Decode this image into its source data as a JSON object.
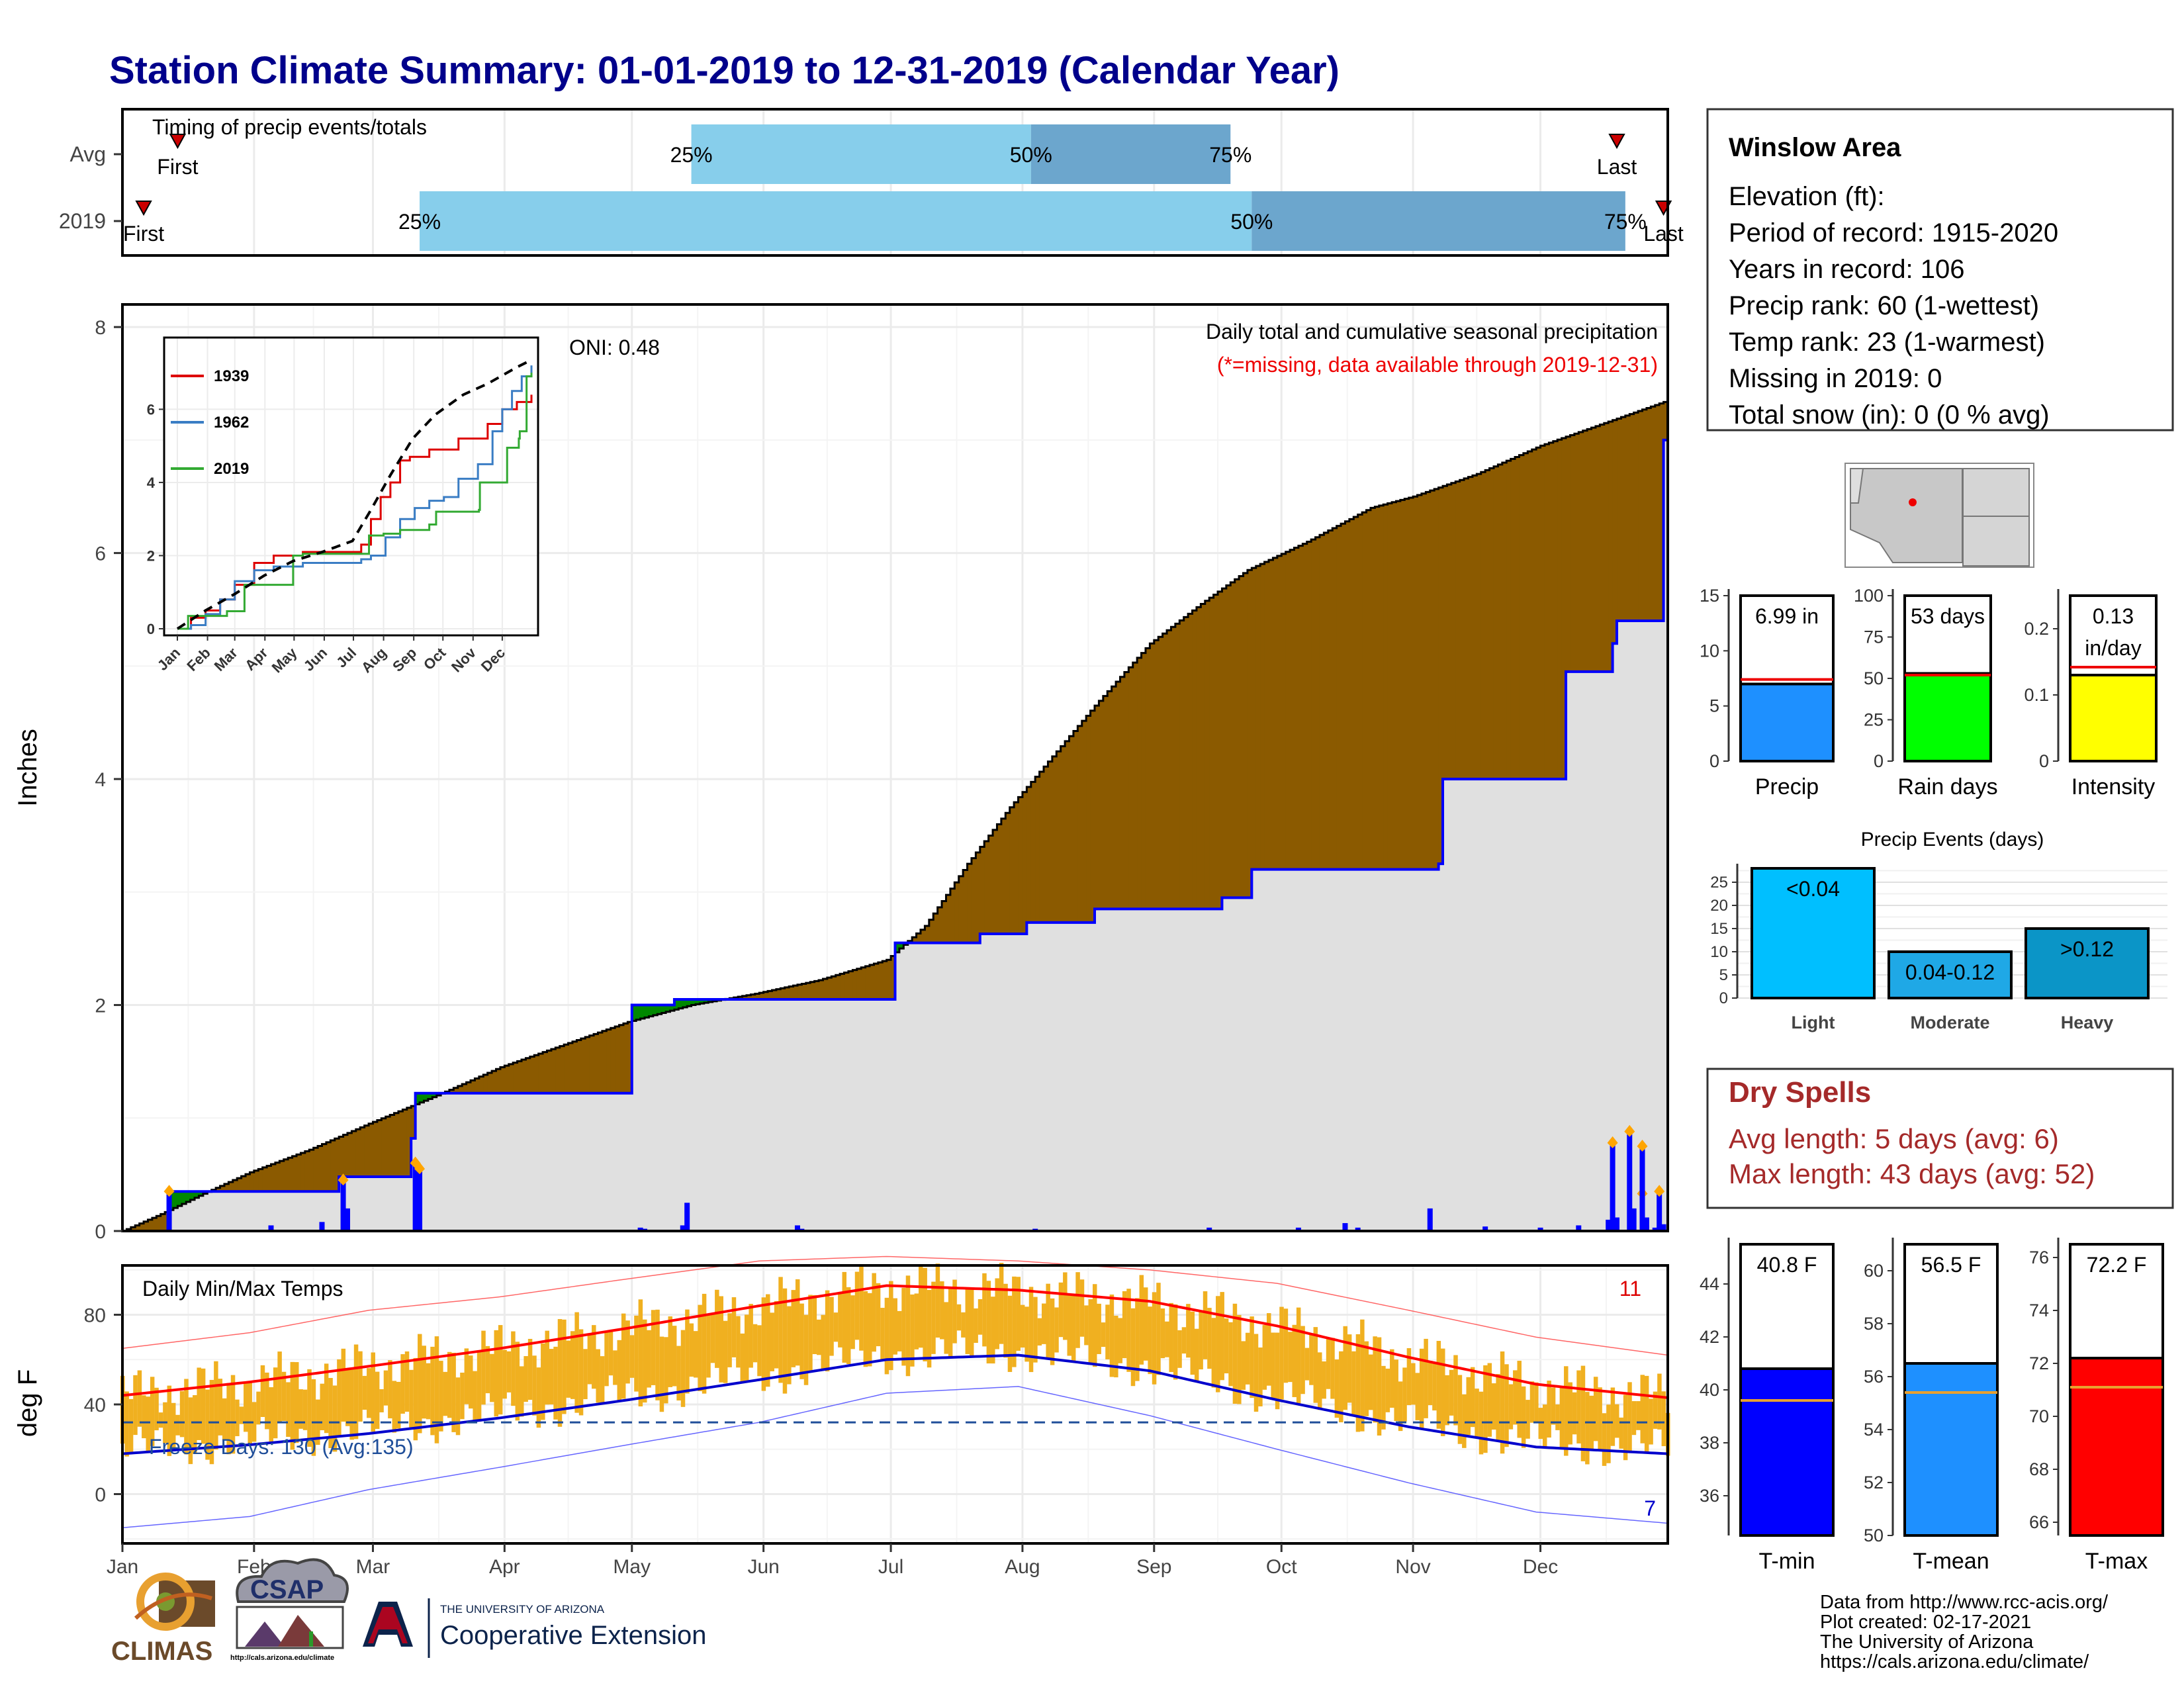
{
  "title": "Station Climate Summary: 01-01-2019 to 12-31-2019 (Calendar Year)",
  "chart_data": [
    {
      "type": "bar",
      "id": "timing",
      "label": "Timing of precip events/totals",
      "categories": [
        "Avg",
        "2019"
      ],
      "avg": {
        "first": "Jan 14",
        "p25": "May 15",
        "p50": "Aug 3",
        "p75": "Sep 19",
        "last": "Dec 19"
      },
      "y2019": {
        "first": "Jan 6",
        "p25": "Mar 12",
        "p50": "Sep 24",
        "p75": "Dec 21",
        "last": "Dec 30"
      },
      "marker_labels": {
        "first": "First",
        "last": "Last",
        "p25": "25%",
        "p50": "50%",
        "p75": "75%"
      },
      "colors": {
        "p25_p50": "#87ceeb",
        "p50_p75": "#6ca6cd",
        "marker": "#cc0000"
      }
    },
    {
      "type": "area",
      "id": "precip",
      "title": "Daily total and cumulative seasonal precipitation",
      "subtitle": "(*=missing, data available through 2019-12-31)",
      "annotation": "ONI: 0.48",
      "ylabel": "Inches",
      "ylim": [
        0,
        8.2
      ],
      "yticks": [
        0,
        2,
        4,
        6,
        8
      ],
      "x_months": [
        "Jan",
        "Feb",
        "Mar",
        "Apr",
        "May",
        "Jun",
        "Jul",
        "Aug",
        "Sep",
        "Oct",
        "Nov",
        "Dec"
      ],
      "normal_cumulative": {
        "x_day": [
          1,
          10,
          20,
          31,
          45,
          59,
          75,
          90,
          105,
          120,
          135,
          150,
          165,
          181,
          190,
          200,
          210,
          220,
          230,
          243,
          255,
          266,
          280,
          295,
          305,
          320,
          335,
          350,
          365
        ],
        "y": [
          0,
          0.15,
          0.33,
          0.52,
          0.72,
          0.95,
          1.2,
          1.45,
          1.65,
          1.85,
          2.0,
          2.1,
          2.22,
          2.4,
          2.7,
          3.25,
          3.75,
          4.2,
          4.65,
          5.2,
          5.55,
          5.85,
          6.1,
          6.4,
          6.5,
          6.7,
          6.95,
          7.15,
          7.35
        ]
      },
      "observed_cumulative": {
        "x_day": [
          1,
          11,
          12,
          35,
          52,
          53,
          69,
          70,
          120,
          121,
          130,
          131,
          182,
          183,
          198,
          203,
          213,
          214,
          229,
          230,
          260,
          267,
          268,
          311,
          312,
          340,
          341,
          352,
          353,
          375,
          385,
          364,
          365
        ],
        "y": [
          0,
          0.0,
          0.35,
          0.35,
          0.48,
          0.48,
          0.82,
          1.22,
          1.22,
          2.0,
          2.0,
          2.05,
          2.05,
          2.55,
          2.55,
          2.63,
          2.63,
          2.73,
          2.73,
          2.85,
          2.95,
          3.2,
          3.2,
          3.25,
          4.0,
          4.0,
          4.95,
          5.2,
          5.4,
          5.95,
          6.5,
          7.0,
          7.05
        ]
      },
      "daily_bars": {
        "x_day": [
          12,
          36,
          48,
          53,
          54,
          70,
          71,
          123,
          124,
          133,
          134,
          160,
          161,
          216,
          257,
          278,
          289,
          292,
          309,
          322,
          335,
          344,
          351,
          352,
          353,
          376,
          377,
          379,
          380,
          359,
          360,
          362,
          363,
          364
        ],
        "y": [
          0.35,
          0.05,
          0.08,
          0.45,
          0.2,
          0.6,
          0.55,
          0.03,
          0.02,
          0.05,
          0.25,
          0.05,
          0.02,
          0.02,
          0.03,
          0.03,
          0.07,
          0.03,
          0.2,
          0.04,
          0.03,
          0.05,
          0.1,
          0.78,
          0.12,
          0.88,
          0.2,
          0.33,
          0.05,
          0.75,
          0.12,
          0.03,
          0.35,
          0.06
        ]
      },
      "colors": {
        "normal": "#e0e0e0",
        "above": "#008800",
        "below": "#8b5a00",
        "observed": "#0000ff",
        "bars": "#0000ff",
        "bar_tops": "#ffa500"
      }
    },
    {
      "type": "line",
      "id": "inset",
      "xticks": [
        "Jan",
        "Feb",
        "Mar",
        "Apr",
        "May",
        "Jun",
        "Jul",
        "Aug",
        "Sep",
        "Oct",
        "Nov",
        "Dec"
      ],
      "yticks": [
        0,
        2,
        4,
        6
      ],
      "ylim": [
        0,
        7.6
      ],
      "series": [
        {
          "name": "1939",
          "color": "#dd0000",
          "x": [
            1,
            15,
            30,
            45,
            60,
            80,
            100,
            130,
            160,
            190,
            200,
            210,
            220,
            230,
            240,
            260,
            275,
            290,
            300,
            320,
            335,
            350,
            365
          ],
          "y": [
            0,
            0.3,
            0.5,
            0.8,
            1.2,
            1.8,
            2.0,
            2.1,
            2.1,
            2.3,
            3.0,
            3.6,
            4.0,
            4.6,
            4.7,
            4.9,
            4.9,
            5.2,
            5.2,
            5.6,
            6.0,
            6.2,
            6.4
          ]
        },
        {
          "name": "1962",
          "color": "#3a7dc4",
          "x": [
            1,
            15,
            30,
            45,
            60,
            80,
            100,
            130,
            160,
            190,
            200,
            215,
            230,
            245,
            260,
            275,
            290,
            310,
            325,
            335,
            345,
            355,
            365
          ],
          "y": [
            0,
            0.1,
            0.4,
            0.8,
            1.3,
            1.6,
            1.7,
            1.8,
            1.8,
            1.9,
            2.0,
            2.5,
            3.0,
            3.3,
            3.5,
            3.6,
            4.1,
            4.5,
            5.4,
            6.0,
            6.5,
            6.9,
            7.2
          ]
        },
        {
          "name": "2019",
          "color": "#33aa33",
          "x": [
            1,
            12,
            35,
            52,
            70,
            120,
            130,
            182,
            198,
            213,
            230,
            260,
            267,
            311,
            312,
            340,
            352,
            353,
            360,
            365
          ],
          "y": [
            0,
            0.35,
            0.35,
            0.48,
            1.2,
            2.0,
            2.05,
            2.05,
            2.55,
            2.6,
            2.7,
            2.85,
            3.2,
            3.25,
            4.0,
            4.95,
            5.2,
            5.4,
            6.9,
            7.0
          ]
        },
        {
          "name": "",
          "color": "#000000",
          "x": [
            1,
            30,
            60,
            90,
            120,
            150,
            181,
            200,
            220,
            243,
            266,
            295,
            320,
            350,
            365
          ],
          "y": [
            0,
            0.5,
            0.95,
            1.45,
            1.85,
            2.1,
            2.4,
            3.25,
            4.2,
            5.2,
            5.85,
            6.4,
            6.7,
            7.15,
            7.35
          ],
          "dash": true
        }
      ]
    },
    {
      "type": "line",
      "id": "temps",
      "label": "Daily Min/Max Temps",
      "ylabel": "deg F",
      "ylim": [
        -22,
        102
      ],
      "yticks": [
        0,
        40,
        80
      ],
      "x_months": [
        "Jan",
        "Feb",
        "Mar",
        "Apr",
        "May",
        "Jun",
        "Jul",
        "Aug",
        "Sep",
        "Oct",
        "Nov",
        "Dec"
      ],
      "freeze_label": "Freeze Days: 130 (Avg:135)",
      "freeze_line": 32,
      "count_hot": "11",
      "count_cold": "7",
      "normal_max": {
        "x_day": [
          1,
          31,
          59,
          90,
          120,
          151,
          181,
          212,
          243,
          273,
          304,
          334,
          365
        ],
        "y": [
          44,
          50,
          57,
          65,
          74,
          84,
          93,
          91,
          86,
          75,
          61,
          49,
          43
        ]
      },
      "normal_min": {
        "x_day": [
          1,
          31,
          59,
          90,
          120,
          151,
          181,
          212,
          243,
          273,
          304,
          334,
          365
        ],
        "y": [
          18,
          22,
          27,
          34,
          42,
          51,
          60,
          62,
          55,
          42,
          30,
          21,
          18
        ]
      },
      "record_max": {
        "x_day": [
          1,
          31,
          59,
          90,
          120,
          151,
          181,
          212,
          243,
          273,
          304,
          334,
          365
        ],
        "y": [
          65,
          72,
          82,
          88,
          96,
          104,
          106,
          104,
          100,
          94,
          82,
          70,
          62
        ]
      },
      "record_min": {
        "x_day": [
          1,
          31,
          59,
          90,
          120,
          151,
          181,
          212,
          243,
          273,
          304,
          334,
          365
        ],
        "y": [
          -15,
          -10,
          2,
          12,
          22,
          32,
          45,
          48,
          35,
          20,
          5,
          -8,
          -13
        ]
      },
      "colors": {
        "range": "#f0b020",
        "nmax": "#ff0000",
        "nmin": "#0000cc",
        "rmax": "#ff6666",
        "rmin": "#6666ff"
      }
    },
    {
      "type": "bar",
      "id": "precip_mini",
      "categories": [
        "Precip"
      ],
      "values": [
        6.99
      ],
      "normal": 7.4,
      "ylim": [
        0,
        15
      ],
      "yticks": [
        0,
        5,
        10,
        15
      ],
      "value_label": "6.99 in",
      "color": "#1e90ff"
    },
    {
      "type": "bar",
      "id": "raindays_mini",
      "categories": [
        "Rain days"
      ],
      "values": [
        53
      ],
      "normal": 52,
      "ylim": [
        0,
        100
      ],
      "yticks": [
        0,
        25,
        50,
        75,
        100
      ],
      "value_label": "53 days",
      "color": "#00ff00"
    },
    {
      "type": "bar",
      "id": "intensity_mini",
      "categories": [
        "Intensity"
      ],
      "values": [
        0.13
      ],
      "normal": 0.142,
      "ylim": [
        0,
        0.25
      ],
      "yticks": [
        0.0,
        0.1,
        0.2
      ],
      "value_label": "0.13",
      "value_unit": "in/day",
      "color": "#ffff00"
    },
    {
      "type": "bar",
      "id": "events",
      "title": "Precip Events (days)",
      "categories": [
        "Light",
        "Moderate",
        "Heavy"
      ],
      "values": [
        28,
        10,
        15
      ],
      "bar_labels": [
        "<0.04",
        "0.04-0.12",
        ">0.12"
      ],
      "ylim": [
        0,
        29
      ],
      "yticks": [
        0,
        5,
        10,
        15,
        20,
        25
      ],
      "colors": [
        "#00bfff",
        "#1fa8e6",
        "#0b95c7"
      ]
    },
    {
      "type": "bar",
      "id": "tmin_mini",
      "categories": [
        "T-min"
      ],
      "values": [
        40.8
      ],
      "normal": 39.6,
      "ylim": [
        34.5,
        45.5
      ],
      "yticks": [
        36,
        38,
        40,
        42,
        44
      ],
      "value_label": "40.8 F",
      "color": "#0000ff"
    },
    {
      "type": "bar",
      "id": "tmean_mini",
      "categories": [
        "T-mean"
      ],
      "values": [
        56.5
      ],
      "normal": 55.4,
      "ylim": [
        50,
        61
      ],
      "yticks": [
        50,
        52,
        54,
        56,
        58,
        60
      ],
      "value_label": "56.5 F",
      "color": "#1e90ff"
    },
    {
      "type": "bar",
      "id": "tmax_mini",
      "categories": [
        "T-max"
      ],
      "values": [
        72.2
      ],
      "normal": 71.1,
      "ylim": [
        65.5,
        76.5
      ],
      "yticks": [
        66,
        68,
        70,
        72,
        74,
        76
      ],
      "value_label": "72.2 F",
      "color": "#ff0000"
    }
  ],
  "station": {
    "name": "Winslow Area",
    "lines": [
      "Elevation (ft):",
      "Period of record: 1915-2020",
      "Years in record: 106",
      "Precip rank: 60 (1-wettest)",
      "Temp rank: 23 (1-warmest)",
      "Missing in 2019: 0",
      "Total snow (in): 0 (0 % avg)"
    ]
  },
  "dry_spells": {
    "title": "Dry Spells",
    "lines": [
      "Avg length: 5 days (avg: 6)",
      "Max length: 43 days (avg: 52)"
    ],
    "color": "#a52a2a"
  },
  "logos": {
    "climas": "CLIMAS",
    "csap": "CSAP",
    "csap_url": "http://cals.arizona.edu/climate",
    "ua_small": "THE UNIVERSITY OF ARIZONA",
    "ua_big": "Cooperative Extension"
  },
  "footer": [
    "Data from http://www.rcc-acis.org/",
    "Plot created: 02-17-2021",
    "The University of Arizona",
    "https://cals.arizona.edu/climate/"
  ]
}
